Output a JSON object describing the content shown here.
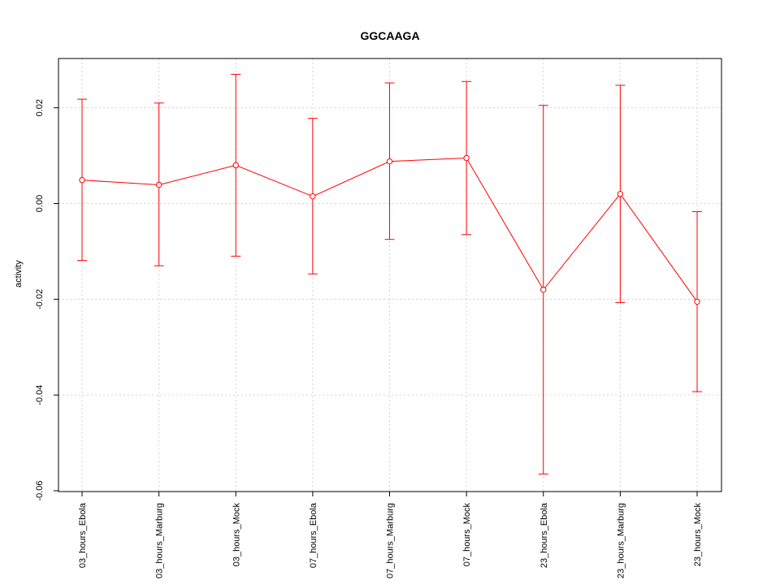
{
  "chart_data": {
    "type": "line",
    "title": "GGCAAGA",
    "ylabel": "activity",
    "xlabel": "",
    "categories": [
      "03_hours_Ebola",
      "03_hours_Marburg",
      "03_hours_Mock",
      "07_hours_Ebola",
      "07_hours_Marburg",
      "07_hours_Mock",
      "23_hours_Ebola",
      "23_hours_Marburg",
      "23_hours_Mock"
    ],
    "series": [
      {
        "values": [
          0.0049,
          0.0039,
          0.008,
          0.0015,
          0.0088,
          0.0095,
          -0.018,
          0.002,
          -0.0205
        ],
        "upper": [
          0.0218,
          0.021,
          0.027,
          0.0178,
          0.0252,
          0.0255,
          0.0205,
          0.0247,
          -0.0017
        ],
        "lower": [
          -0.0119,
          -0.013,
          -0.011,
          -0.0147,
          -0.0075,
          -0.0065,
          -0.0565,
          -0.0207,
          -0.0393
        ]
      }
    ],
    "ylim": [
      -0.06,
      0.03
    ],
    "yticks": [
      -0.06,
      -0.04,
      -0.02,
      0.0,
      0.02
    ],
    "ytick_labels": [
      "-0.06",
      "-0.04",
      "-0.02",
      "0.00",
      "0.02"
    ],
    "grid": true,
    "colors": {
      "series": "#ff0000",
      "grid": "#d3d3d3",
      "axis": "#000000"
    }
  }
}
